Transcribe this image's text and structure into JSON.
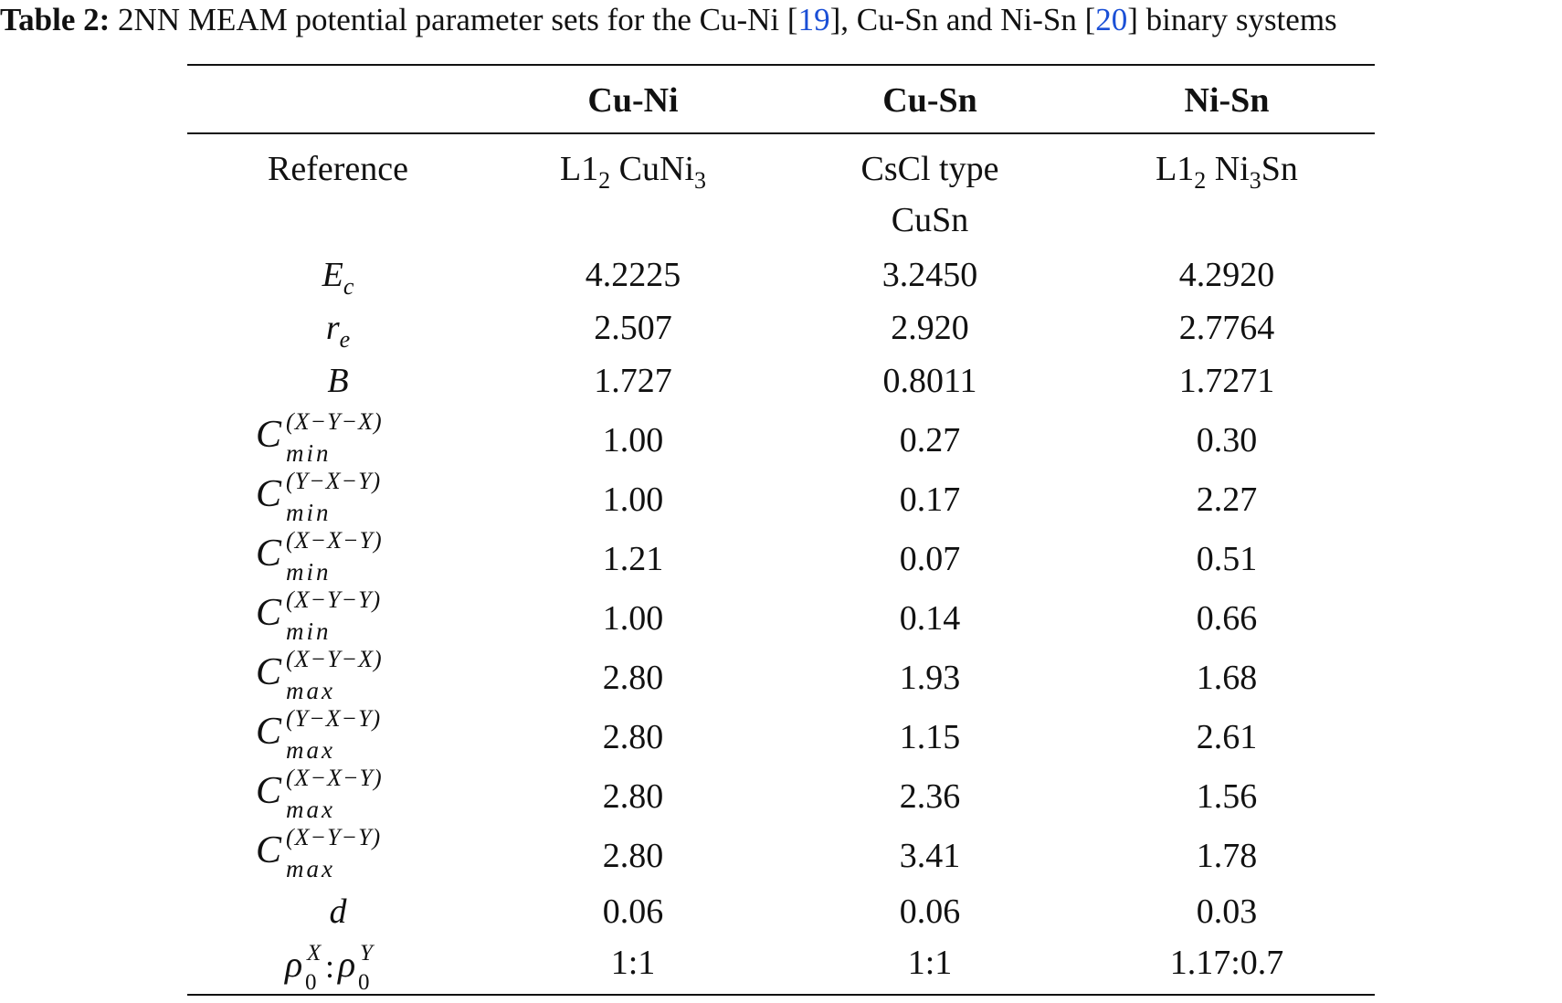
{
  "caption": {
    "label": "Table 2:",
    "text_a": " 2NN MEAM potential parameter sets for the Cu-Ni [",
    "ref1": "19",
    "text_b": "], Cu-Sn and Ni-Sn [",
    "ref2": "20",
    "text_c": "] binary systems"
  },
  "headers": [
    "Cu-Ni",
    "Cu-Sn",
    "Ni-Sn"
  ],
  "reference": {
    "label": "Reference",
    "cuni": {
      "a": "L1",
      "a_sub": "2",
      "b": " CuNi",
      "b_sub": "3"
    },
    "cusn": {
      "line1": "CsCl type",
      "line2": "CuSn"
    },
    "nisn": {
      "a": "L1",
      "a_sub": "2",
      "b": " Ni",
      "b_sub": "3",
      "c": "Sn"
    }
  },
  "rows": [
    {
      "sym": "E",
      "sub": "c",
      "values": [
        "4.2225",
        "3.2450",
        "4.2920"
      ]
    },
    {
      "sym": "r",
      "sub": "e",
      "values": [
        "2.507",
        "2.920",
        "2.7764"
      ]
    },
    {
      "sym": "B",
      "sub": "",
      "values": [
        "1.727",
        "0.8011",
        "1.7271"
      ]
    }
  ],
  "c_rows": [
    {
      "sup": "(X−Y−X)",
      "low": "min",
      "values": [
        "1.00",
        "0.27",
        "0.30"
      ]
    },
    {
      "sup": "(Y−X−Y)",
      "low": "min",
      "values": [
        "1.00",
        "0.17",
        "2.27"
      ]
    },
    {
      "sup": "(X−X−Y)",
      "low": "min",
      "values": [
        "1.21",
        "0.07",
        "0.51"
      ]
    },
    {
      "sup": "(X−Y−Y)",
      "low": "min",
      "values": [
        "1.00",
        "0.14",
        "0.66"
      ]
    },
    {
      "sup": "(X−Y−X)",
      "low": "max",
      "values": [
        "2.80",
        "1.93",
        "1.68"
      ]
    },
    {
      "sup": "(Y−X−Y)",
      "low": "max",
      "values": [
        "2.80",
        "1.15",
        "2.61"
      ]
    },
    {
      "sup": "(X−X−Y)",
      "low": "max",
      "values": [
        "2.80",
        "2.36",
        "1.56"
      ]
    },
    {
      "sup": "(X−Y−Y)",
      "low": "max",
      "values": [
        "2.80",
        "3.41",
        "1.78"
      ]
    }
  ],
  "c_symbol": "C",
  "d_row": {
    "sym": "d",
    "values": [
      "0.06",
      "0.06",
      "0.03"
    ]
  },
  "rho_row": {
    "rho": "ρ",
    "sup_x": "X",
    "sup_y": "Y",
    "sub0": "0",
    "colon": ":",
    "values": [
      "1:1",
      "1:1",
      "1.17:0.7"
    ]
  }
}
